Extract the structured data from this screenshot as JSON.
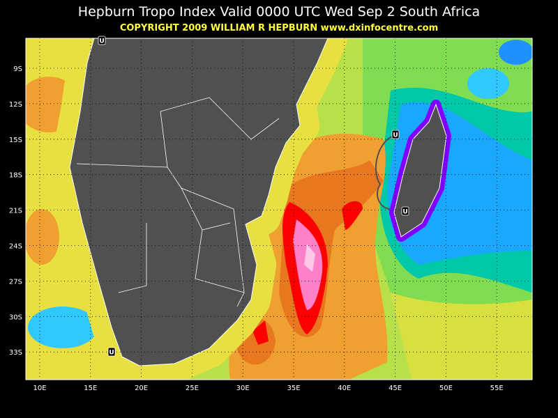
{
  "header": {
    "title": "Hepburn Tropo Index Valid 0000 UTC Wed Sep 2 South Africa",
    "copyright": "COPYRIGHT 2009  WILLIAM R HEPBURN  www.dxinfocentre.com"
  },
  "map": {
    "lat_labels": [
      "9S",
      "12S",
      "15S",
      "18S",
      "21S",
      "24S",
      "27S",
      "30S",
      "33S"
    ],
    "lon_labels": [
      "10E",
      "15E",
      "20E",
      "25E",
      "30E",
      "35E",
      "40E",
      "45E",
      "50E",
      "55E"
    ],
    "markers": [
      "U",
      "U",
      "U",
      "U"
    ]
  }
}
